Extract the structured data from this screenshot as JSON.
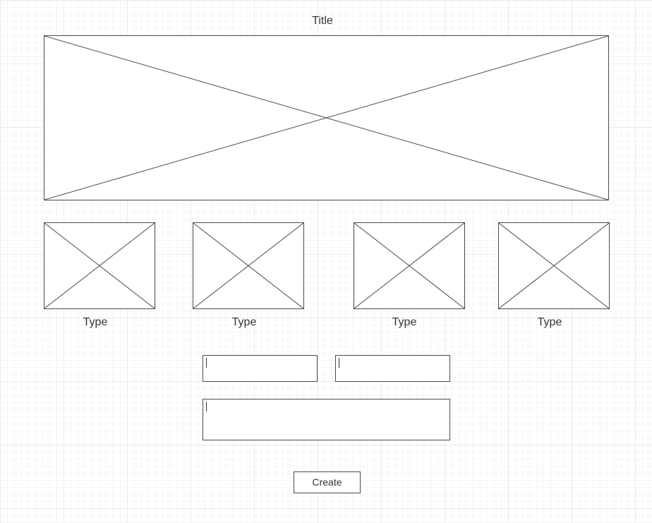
{
  "page": {
    "title": "Title"
  },
  "colors": {
    "stroke": "#4a4a4a",
    "text": "#333333",
    "grid": "#ebebeb",
    "background": "#ffffff"
  },
  "thumbnails": [
    {
      "label": "Type"
    },
    {
      "label": "Type"
    },
    {
      "label": "Type"
    },
    {
      "label": "Type"
    }
  ],
  "form": {
    "fields": [
      {
        "value": ""
      },
      {
        "value": ""
      },
      {
        "value": ""
      }
    ],
    "create_label": "Create"
  }
}
